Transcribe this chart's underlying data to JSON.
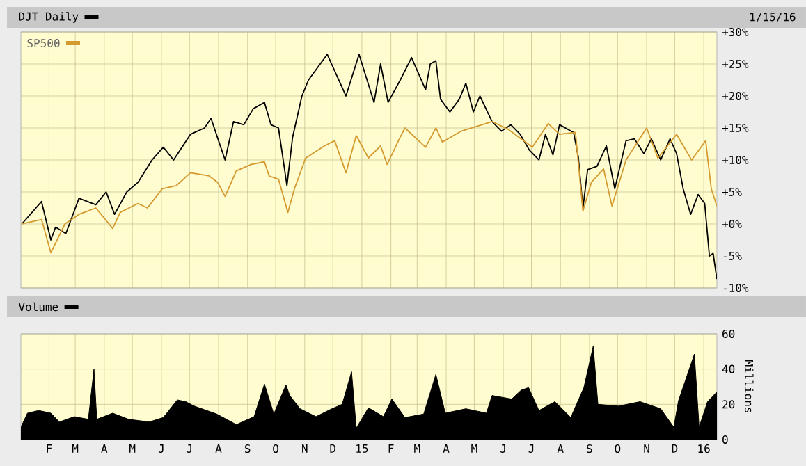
{
  "chart_data": [
    {
      "type": "line",
      "series": [
        {
          "name": "DJT Daily",
          "color": "#000000",
          "x": [
            "2014-01-03",
            "2014-01-24",
            "2014-02-03",
            "2014-02-08",
            "2014-02-19",
            "2014-03-05",
            "2014-03-23",
            "2014-04-03",
            "2014-04-12",
            "2014-04-25",
            "2014-05-07",
            "2014-05-22",
            "2014-06-03",
            "2014-06-14",
            "2014-07-02",
            "2014-07-17",
            "2014-07-24",
            "2014-08-01",
            "2014-08-08",
            "2014-08-17",
            "2014-08-28",
            "2014-09-07",
            "2014-09-19",
            "2014-09-26",
            "2014-10-04",
            "2014-10-13",
            "2014-10-19",
            "2014-10-29",
            "2014-11-05",
            "2014-11-25",
            "2014-12-15",
            "2014-12-29",
            "2015-01-14",
            "2015-01-21",
            "2015-01-29",
            "2015-02-11",
            "2015-02-23",
            "2015-03-10",
            "2015-03-15",
            "2015-03-21",
            "2015-03-26",
            "2015-04-05",
            "2015-04-15",
            "2015-04-22",
            "2015-04-30",
            "2015-05-07",
            "2015-05-20",
            "2015-05-30",
            "2015-06-09",
            "2015-06-19",
            "2015-06-29",
            "2015-07-09",
            "2015-07-16",
            "2015-07-24",
            "2015-07-31",
            "2015-08-15",
            "2015-08-20",
            "2015-08-25",
            "2015-08-30",
            "2015-09-09",
            "2015-09-19",
            "2015-09-28",
            "2015-10-10",
            "2015-10-19",
            "2015-10-29",
            "2015-11-06",
            "2015-11-16",
            "2015-11-26",
            "2015-12-03",
            "2015-12-10",
            "2015-12-18",
            "2015-12-26",
            "2016-01-02",
            "2016-01-07",
            "2016-01-11",
            "2016-01-15"
          ],
          "values": [
            0,
            3.5,
            -2.5,
            -0.5,
            -1.5,
            4,
            3,
            5,
            1.5,
            5,
            6.5,
            10,
            12,
            10,
            14,
            15,
            16.5,
            13,
            10,
            16,
            15.5,
            18,
            19,
            15.5,
            15,
            6,
            13.5,
            20,
            22.5,
            26.5,
            20,
            26.5,
            19,
            25,
            19,
            22.5,
            26,
            21,
            25,
            25.5,
            19.5,
            17.5,
            19.5,
            22,
            17.5,
            20,
            16,
            14.5,
            15.5,
            14,
            11.5,
            10,
            14,
            10.8,
            15.5,
            14.3,
            10.5,
            2.5,
            8.5,
            9,
            12.2,
            5.5,
            13,
            13.3,
            11,
            13.3,
            10,
            13.3,
            11,
            5.5,
            1.5,
            4.6,
            3.2,
            -5,
            -4.6,
            -8.6
          ]
        },
        {
          "name": "SP500",
          "color": "#d49a30",
          "x": [
            "2014-01-03",
            "2014-01-24",
            "2014-02-03",
            "2014-02-18",
            "2014-03-05",
            "2014-03-23",
            "2014-04-10",
            "2014-04-18",
            "2014-05-07",
            "2014-05-17",
            "2014-06-02",
            "2014-06-17",
            "2014-07-02",
            "2014-07-22",
            "2014-07-31",
            "2014-08-08",
            "2014-08-20",
            "2014-09-05",
            "2014-09-19",
            "2014-09-24",
            "2014-10-04",
            "2014-10-14",
            "2014-10-21",
            "2014-11-02",
            "2014-11-22",
            "2014-12-03",
            "2014-12-15",
            "2014-12-26",
            "2015-01-08",
            "2015-01-21",
            "2015-01-28",
            "2015-02-10",
            "2015-02-16",
            "2015-03-10",
            "2015-03-21",
            "2015-03-28",
            "2015-04-17",
            "2015-05-20",
            "2015-06-06",
            "2015-07-02",
            "2015-07-19",
            "2015-07-31",
            "2015-08-17",
            "2015-08-25",
            "2015-09-03",
            "2015-09-16",
            "2015-09-25",
            "2015-10-10",
            "2015-11-01",
            "2015-11-13",
            "2015-12-03",
            "2015-12-19",
            "2016-01-03",
            "2016-01-09",
            "2016-01-15"
          ],
          "values": [
            0,
            0.7,
            -4.5,
            0,
            1.5,
            2.5,
            -0.7,
            1.8,
            3.2,
            2.5,
            5.5,
            6,
            8,
            7.5,
            6.5,
            4.3,
            8.3,
            9.3,
            9.7,
            7.5,
            7,
            1.8,
            5.5,
            10.3,
            12.2,
            13,
            8,
            13.8,
            10.3,
            12.2,
            9.3,
            13.3,
            15,
            12,
            15,
            12.8,
            14.5,
            16,
            14.8,
            12,
            15.7,
            14,
            14.3,
            2,
            6.5,
            8.6,
            2.8,
            10,
            15,
            10.3,
            14,
            10,
            13,
            5.5,
            2.8
          ]
        }
      ],
      "xlim": [
        "2014-01-02",
        "2016-01-15"
      ],
      "xticks": [
        {
          "value": "2014-02-01",
          "label": null
        },
        {
          "value": "2014-03-01",
          "label": null
        },
        {
          "value": "2014-04-01",
          "label": null
        },
        {
          "value": "2014-05-01",
          "label": null
        },
        {
          "value": "2014-06-01",
          "label": null
        },
        {
          "value": "2014-07-01",
          "label": null
        },
        {
          "value": "2014-08-01",
          "label": null
        },
        {
          "value": "2014-09-01",
          "label": null
        },
        {
          "value": "2014-10-01",
          "label": null
        },
        {
          "value": "2014-11-01",
          "label": null
        },
        {
          "value": "2014-12-01",
          "label": null
        },
        {
          "value": "2015-01-01",
          "label": null
        },
        {
          "value": "2015-02-01",
          "label": null
        },
        {
          "value": "2015-03-01",
          "label": null
        },
        {
          "value": "2015-04-01",
          "label": null
        },
        {
          "value": "2015-05-01",
          "label": null
        },
        {
          "value": "2015-06-01",
          "label": null
        },
        {
          "value": "2015-07-01",
          "label": null
        },
        {
          "value": "2015-08-01",
          "label": null
        },
        {
          "value": "2015-09-01",
          "label": null
        },
        {
          "value": "2015-10-01",
          "label": null
        },
        {
          "value": "2015-11-01",
          "label": null
        },
        {
          "value": "2015-12-01",
          "label": null
        },
        {
          "value": "2016-01-01",
          "label": null
        }
      ],
      "ylim": [
        -10,
        30
      ],
      "yticks": [
        {
          "value": -10,
          "label": "-10%"
        },
        {
          "value": -5,
          "label": "-5%"
        },
        {
          "value": 0,
          "label": "+0%"
        },
        {
          "value": 5,
          "label": "+5%"
        },
        {
          "value": 10,
          "label": "+10%"
        },
        {
          "value": 15,
          "label": "+15%"
        },
        {
          "value": 20,
          "label": "+20%"
        },
        {
          "value": 25,
          "label": "+25%"
        },
        {
          "value": 30,
          "label": "+30%"
        }
      ],
      "tick_labels": "y",
      "grid": true,
      "legend": "top left",
      "annotations": [
        "1/15/16"
      ]
    },
    {
      "type": "area",
      "series": [
        {
          "name": "Volume",
          "color": "#000000",
          "x": [
            "2014-01-02",
            "2014-01-09",
            "2014-01-21",
            "2014-02-03",
            "2014-02-12",
            "2014-02-28",
            "2014-03-15",
            "2014-03-21",
            "2014-03-24",
            "2014-04-10",
            "2014-04-27",
            "2014-05-19",
            "2014-06-03",
            "2014-06-18",
            "2014-06-27",
            "2014-07-06",
            "2014-07-30",
            "2014-08-20",
            "2014-09-08",
            "2014-09-19",
            "2014-09-29",
            "2014-10-12",
            "2014-10-16",
            "2014-10-27",
            "2014-11-13",
            "2014-11-30",
            "2014-12-11",
            "2014-12-21",
            "2014-12-26",
            "2015-01-08",
            "2015-01-24",
            "2015-02-02",
            "2015-02-16",
            "2015-03-08",
            "2015-03-21",
            "2015-03-31",
            "2015-04-22",
            "2015-05-14",
            "2015-05-20",
            "2015-06-10",
            "2015-06-20",
            "2015-06-28",
            "2015-07-09",
            "2015-07-26",
            "2015-08-12",
            "2015-08-26",
            "2015-09-05",
            "2015-09-10",
            "2015-10-02",
            "2015-10-25",
            "2015-11-16",
            "2015-11-30",
            "2015-12-05",
            "2015-12-22",
            "2015-12-27",
            "2016-01-05",
            "2016-01-15"
          ],
          "values": [
            7,
            15,
            16.5,
            15,
            10,
            13,
            11.5,
            40,
            11.5,
            15,
            11.5,
            10,
            12.5,
            22.5,
            21.5,
            19,
            14.5,
            8.5,
            13,
            31.5,
            14.5,
            31,
            25,
            17.5,
            13,
            17.5,
            20,
            38.5,
            6.5,
            18,
            13,
            23,
            12.5,
            14.5,
            37,
            15,
            17.5,
            15,
            25,
            23,
            28,
            29.5,
            16.5,
            21.5,
            12.5,
            29.5,
            53,
            20,
            19,
            21.5,
            17.5,
            7,
            22,
            48.5,
            7,
            21.5,
            27
          ]
        }
      ],
      "xlim": [
        "2014-01-02",
        "2016-01-15"
      ],
      "xticks": [
        {
          "value": "2014-02-01",
          "label": "F"
        },
        {
          "value": "2014-03-01",
          "label": "M"
        },
        {
          "value": "2014-04-01",
          "label": "A"
        },
        {
          "value": "2014-05-01",
          "label": "M"
        },
        {
          "value": "2014-06-01",
          "label": "J"
        },
        {
          "value": "2014-07-01",
          "label": "J"
        },
        {
          "value": "2014-08-01",
          "label": "A"
        },
        {
          "value": "2014-09-01",
          "label": "S"
        },
        {
          "value": "2014-10-01",
          "label": "O"
        },
        {
          "value": "2014-11-01",
          "label": "N"
        },
        {
          "value": "2014-12-01",
          "label": "D"
        },
        {
          "value": "2015-01-01",
          "label": "15"
        },
        {
          "value": "2015-02-01",
          "label": "F"
        },
        {
          "value": "2015-03-01",
          "label": "M"
        },
        {
          "value": "2015-04-01",
          "label": "A"
        },
        {
          "value": "2015-05-01",
          "label": "M"
        },
        {
          "value": "2015-06-01",
          "label": "J"
        },
        {
          "value": "2015-07-01",
          "label": "J"
        },
        {
          "value": "2015-08-01",
          "label": "A"
        },
        {
          "value": "2015-09-01",
          "label": "S"
        },
        {
          "value": "2015-10-01",
          "label": "O"
        },
        {
          "value": "2015-11-01",
          "label": "N"
        },
        {
          "value": "2015-12-01",
          "label": "D"
        },
        {
          "value": "2016-01-01",
          "label": "16"
        }
      ],
      "ylim": [
        0,
        60
      ],
      "yticks": [
        0,
        20,
        40,
        60
      ],
      "ylabel": "Millions",
      "grid": true
    }
  ]
}
